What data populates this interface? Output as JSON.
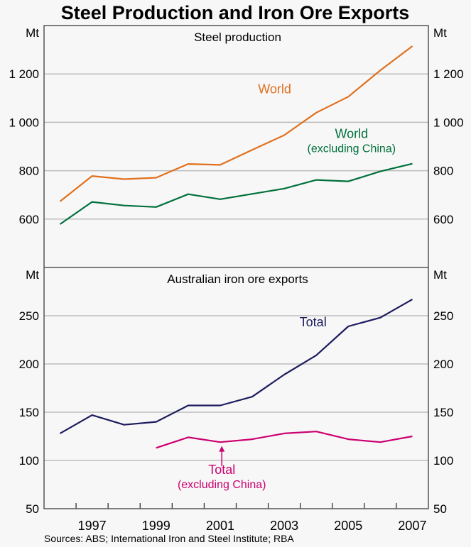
{
  "title": "Steel Production and Iron Ore Exports",
  "source": "Sources: ABS; International Iron and Steel Institute; RBA",
  "colors": {
    "background": "#f7f7f7",
    "world": "#e0701e",
    "world_ex_china": "#00703c",
    "total": "#1c1c5e",
    "total_ex_china": "#cc0070",
    "grid": "#bdbdbd",
    "frame": "#555555"
  },
  "chart_data": [
    {
      "type": "line",
      "title": "Steel production",
      "ylabel": "Mt",
      "ylim": [
        400,
        1400
      ],
      "yticks": [
        600,
        800,
        1000,
        1200
      ],
      "ytick_labels": [
        "600",
        "800",
        "1 000",
        "1 200"
      ],
      "xlim": [
        1995.5,
        2007.5
      ],
      "grid": true,
      "x": [
        1996,
        1997,
        1998,
        1999,
        2000,
        2001,
        2002,
        2003,
        2004,
        2005,
        2006,
        2007
      ],
      "series": [
        {
          "name": "World",
          "color_key": "world",
          "values": [
            673,
            778,
            765,
            771,
            828,
            824,
            886,
            947,
            1040,
            1106,
            1215,
            1315
          ]
        },
        {
          "name": "World",
          "name_line2": "(excluding China)",
          "color_key": "world_ex_china",
          "values": [
            579,
            671,
            656,
            650,
            703,
            682,
            704,
            726,
            762,
            756,
            797,
            829
          ]
        }
      ]
    },
    {
      "type": "line",
      "title": "Australian iron ore exports",
      "ylabel": "Mt",
      "ylim": [
        50,
        300
      ],
      "yticks": [
        50,
        100,
        150,
        200,
        250
      ],
      "ytick_labels": [
        "50",
        "100",
        "150",
        "200",
        "250"
      ],
      "xlim": [
        1995.5,
        2007.5
      ],
      "xtick_labels": [
        "1997",
        "1999",
        "2001",
        "2003",
        "2005",
        "2007"
      ],
      "grid": true,
      "x": [
        1996,
        1997,
        1998,
        1999,
        2000,
        2001,
        2002,
        2003,
        2004,
        2005,
        2006,
        2007
      ],
      "series": [
        {
          "name": "Total",
          "color_key": "total",
          "values": [
            128,
            147,
            137,
            140,
            157,
            157,
            166,
            189,
            209,
            239,
            248,
            267
          ]
        },
        {
          "name": "Total",
          "name_line2": "(excluding China)",
          "color_key": "total_ex_china",
          "values": [
            null,
            null,
            null,
            113,
            124,
            119,
            122,
            128,
            130,
            122,
            119,
            125
          ]
        }
      ]
    }
  ]
}
